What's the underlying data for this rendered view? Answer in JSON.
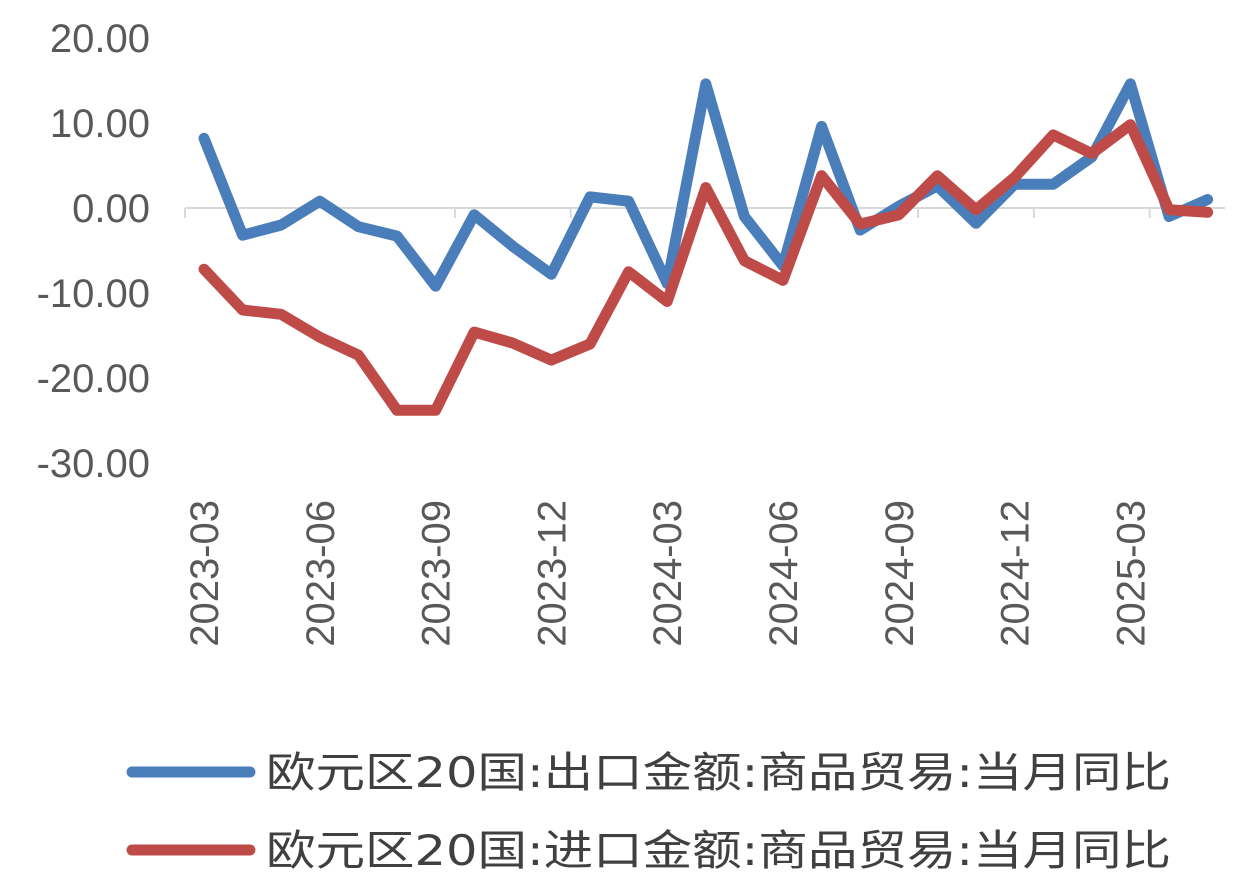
{
  "chart_data": {
    "type": "line",
    "title": "",
    "xlabel": "",
    "ylabel": "",
    "ylim": [
      -30,
      20
    ],
    "yticks": [
      20,
      10,
      0,
      -10,
      -20,
      -30
    ],
    "ytick_labels": [
      "20.00",
      "10.00",
      "0.00",
      "-10.00",
      "-20.00",
      "-30.00"
    ],
    "x": [
      "2023-03",
      "2023-04",
      "2023-05",
      "2023-06",
      "2023-07",
      "2023-08",
      "2023-09",
      "2023-10",
      "2023-11",
      "2023-12",
      "2024-01",
      "2024-02",
      "2024-03",
      "2024-04",
      "2024-05",
      "2024-06",
      "2024-07",
      "2024-08",
      "2024-09",
      "2024-10",
      "2024-11",
      "2024-12",
      "2025-01",
      "2025-02",
      "2025-03",
      "2025-04",
      "2025-05"
    ],
    "xtick_labels": [
      "2023-03",
      "2023-06",
      "2023-09",
      "2023-12",
      "2024-03",
      "2024-06",
      "2024-09",
      "2024-12",
      "2025-03"
    ],
    "grid": false,
    "legend_position": "bottom",
    "series": [
      {
        "name": "欧元区20国:出口金额:商品贸易:当月同比",
        "color": "#4a7ebb",
        "values": [
          8.2,
          -3.2,
          -2.0,
          0.8,
          -2.2,
          -3.3,
          -9.2,
          -0.8,
          -4.5,
          -7.8,
          1.3,
          0.8,
          -8.9,
          14.6,
          -1.0,
          -6.8,
          9.6,
          -2.6,
          0.2,
          2.6,
          -1.8,
          2.8,
          2.8,
          6.0,
          14.6,
          -1.0,
          1.0
        ]
      },
      {
        "name": "欧元区20国:进口金额:商品贸易:当月同比",
        "color": "#be4b48",
        "values": [
          -7.2,
          -12.0,
          -12.5,
          -15.2,
          -17.3,
          -23.8,
          -23.8,
          -14.6,
          -15.9,
          -17.9,
          -16.0,
          -7.5,
          -11.0,
          2.4,
          -6.2,
          -8.5,
          3.8,
          -1.9,
          -0.8,
          3.8,
          -0.2,
          3.6,
          8.6,
          6.4,
          9.8,
          -0.2,
          -0.5
        ]
      }
    ]
  }
}
